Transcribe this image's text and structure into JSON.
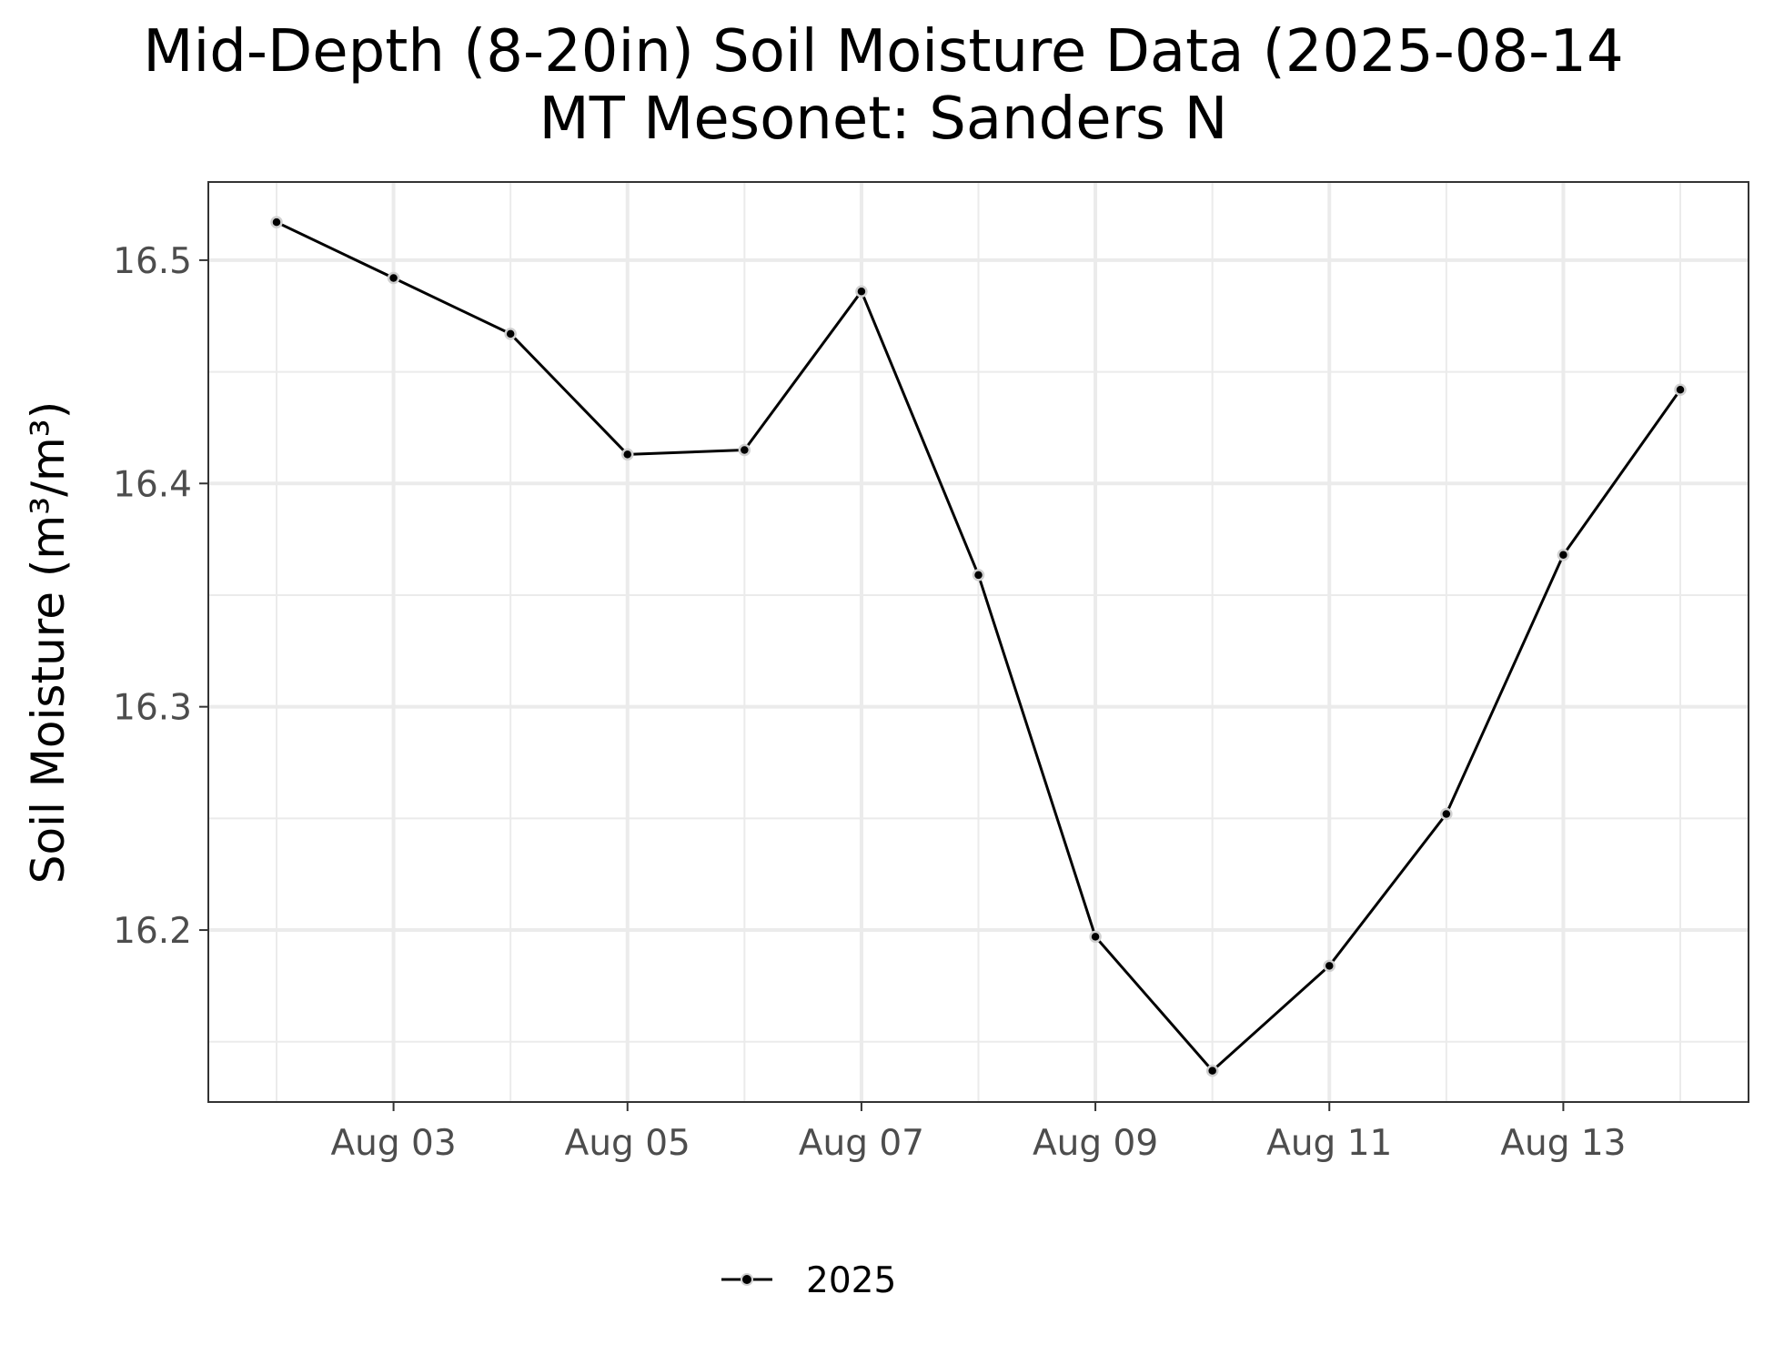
{
  "chart_data": {
    "type": "line",
    "title": "Mid-Depth (8-20in) Soil Moisture Data (2025-08-14",
    "subtitle": "MT Mesonet: Sanders N",
    "xlabel": "",
    "ylabel": "Soil Moisture (m³/m³)",
    "x": [
      "2025-08-02",
      "2025-08-03",
      "2025-08-04",
      "2025-08-05",
      "2025-08-06",
      "2025-08-07",
      "2025-08-08",
      "2025-08-09",
      "2025-08-10",
      "2025-08-11",
      "2025-08-12",
      "2025-08-13",
      "2025-08-14"
    ],
    "series": [
      {
        "name": "2025",
        "color": "#000000",
        "values": [
          16.517,
          16.492,
          16.467,
          16.413,
          16.415,
          16.486,
          16.359,
          16.197,
          16.137,
          16.184,
          16.252,
          16.368,
          16.442
        ]
      }
    ],
    "xlim": [
      "2025-08-01 10:00",
      "2025-08-14 14:00"
    ],
    "ylim": [
      16.123,
      16.535
    ],
    "x_ticks": [
      {
        "date": "2025-08-03",
        "label": "Aug 03"
      },
      {
        "date": "2025-08-05",
        "label": "Aug 05"
      },
      {
        "date": "2025-08-07",
        "label": "Aug 07"
      },
      {
        "date": "2025-08-09",
        "label": "Aug 09"
      },
      {
        "date": "2025-08-11",
        "label": "Aug 11"
      },
      {
        "date": "2025-08-13",
        "label": "Aug 13"
      }
    ],
    "x_minor_ticks": [
      "2025-08-02",
      "2025-08-04",
      "2025-08-06",
      "2025-08-08",
      "2025-08-10",
      "2025-08-12",
      "2025-08-14"
    ],
    "y_ticks": [
      {
        "value": 16.2,
        "label": "16.2"
      },
      {
        "value": 16.3,
        "label": "16.3"
      },
      {
        "value": 16.4,
        "label": "16.4"
      },
      {
        "value": 16.5,
        "label": "16.5"
      }
    ],
    "y_minor_ticks": [
      16.15,
      16.25,
      16.35,
      16.45
    ],
    "grid": true,
    "legend": {
      "position": "bottom",
      "entries": [
        "2025"
      ]
    },
    "colors": {
      "grid": "#ebebeb",
      "panel_border": "#333333",
      "point_halo": "#d0d0d0",
      "tick_text": "#4d4d4d"
    }
  }
}
